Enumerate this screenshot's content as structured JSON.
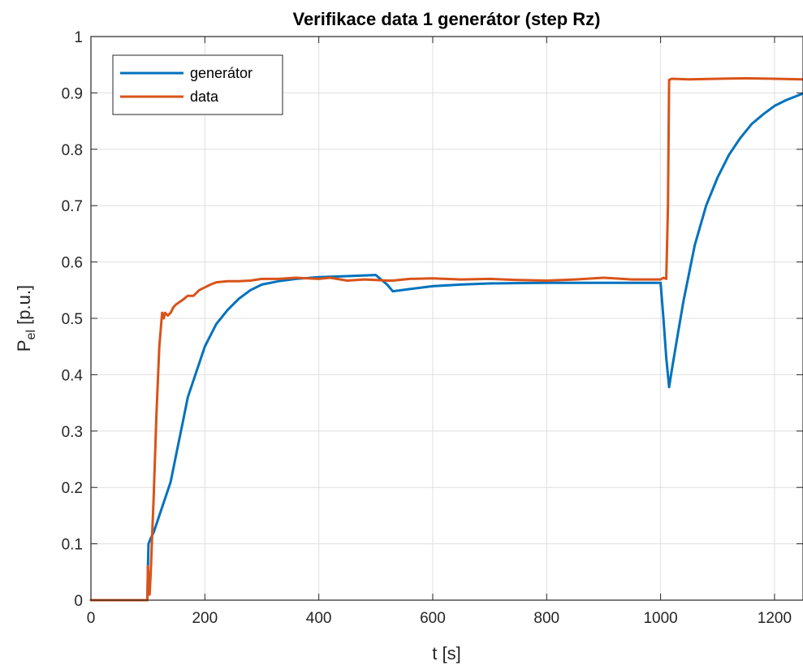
{
  "chart_data": {
    "type": "line",
    "title": "Verifikace data 1 generátor (step Rz)",
    "xlabel": "t [s]",
    "ylabel_main": "P",
    "ylabel_sub": "el",
    "ylabel_suffix": " [p.u.]",
    "xlim": [
      0,
      1250
    ],
    "ylim": [
      0,
      1
    ],
    "xticks": [
      0,
      200,
      400,
      600,
      800,
      1000,
      1200
    ],
    "xtick_labels": [
      "0",
      "200",
      "400",
      "600",
      "800",
      "1000",
      "1200"
    ],
    "yticks": [
      0,
      0.1,
      0.2,
      0.3,
      0.4,
      0.5,
      0.6,
      0.7,
      0.8,
      0.9,
      1
    ],
    "ytick_labels": [
      "0",
      "0.1",
      "0.2",
      "0.3",
      "0.4",
      "0.5",
      "0.6",
      "0.7",
      "0.8",
      "0.9",
      "1"
    ],
    "grid": true,
    "legend_location": "top-left",
    "series": [
      {
        "name": "generátor",
        "color": "#0072BD",
        "x": [
          0,
          99,
          100,
          101,
          105,
          110,
          120,
          130,
          140,
          150,
          160,
          170,
          180,
          190,
          200,
          220,
          240,
          260,
          280,
          300,
          330,
          360,
          400,
          450,
          500,
          520,
          530,
          560,
          600,
          650,
          700,
          800,
          900,
          1000,
          1005,
          1010,
          1015,
          1020,
          1030,
          1040,
          1060,
          1080,
          1100,
          1120,
          1140,
          1160,
          1180,
          1200,
          1220,
          1250
        ],
        "y": [
          0,
          0,
          0.06,
          0.1,
          0.11,
          0.12,
          0.15,
          0.18,
          0.21,
          0.26,
          0.31,
          0.36,
          0.39,
          0.42,
          0.45,
          0.49,
          0.515,
          0.535,
          0.55,
          0.56,
          0.566,
          0.57,
          0.573,
          0.575,
          0.577,
          0.56,
          0.548,
          0.552,
          0.557,
          0.56,
          0.562,
          0.563,
          0.563,
          0.563,
          0.5,
          0.43,
          0.378,
          0.41,
          0.47,
          0.53,
          0.63,
          0.7,
          0.75,
          0.79,
          0.82,
          0.845,
          0.862,
          0.877,
          0.887,
          0.899
        ]
      },
      {
        "name": "data",
        "color": "#D95319",
        "x": [
          0,
          99,
          100,
          103,
          105,
          108,
          110,
          115,
          120,
          125,
          128,
          130,
          135,
          140,
          145,
          150,
          160,
          170,
          180,
          190,
          200,
          210,
          220,
          240,
          260,
          280,
          300,
          330,
          360,
          400,
          420,
          450,
          480,
          500,
          520,
          530,
          560,
          600,
          650,
          700,
          750,
          800,
          850,
          900,
          950,
          1000,
          1005,
          1010,
          1013,
          1015,
          1020,
          1050,
          1100,
          1150,
          1200,
          1250
        ],
        "y": [
          0,
          0,
          0.06,
          0.01,
          0.05,
          0.13,
          0.18,
          0.33,
          0.45,
          0.51,
          0.5,
          0.51,
          0.505,
          0.51,
          0.52,
          0.525,
          0.532,
          0.54,
          0.54,
          0.55,
          0.555,
          0.56,
          0.564,
          0.566,
          0.566,
          0.567,
          0.57,
          0.57,
          0.572,
          0.57,
          0.572,
          0.567,
          0.569,
          0.568,
          0.567,
          0.567,
          0.57,
          0.571,
          0.569,
          0.57,
          0.568,
          0.567,
          0.569,
          0.572,
          0.569,
          0.569,
          0.572,
          0.57,
          0.7,
          0.923,
          0.925,
          0.924,
          0.925,
          0.926,
          0.925,
          0.924
        ]
      }
    ]
  }
}
